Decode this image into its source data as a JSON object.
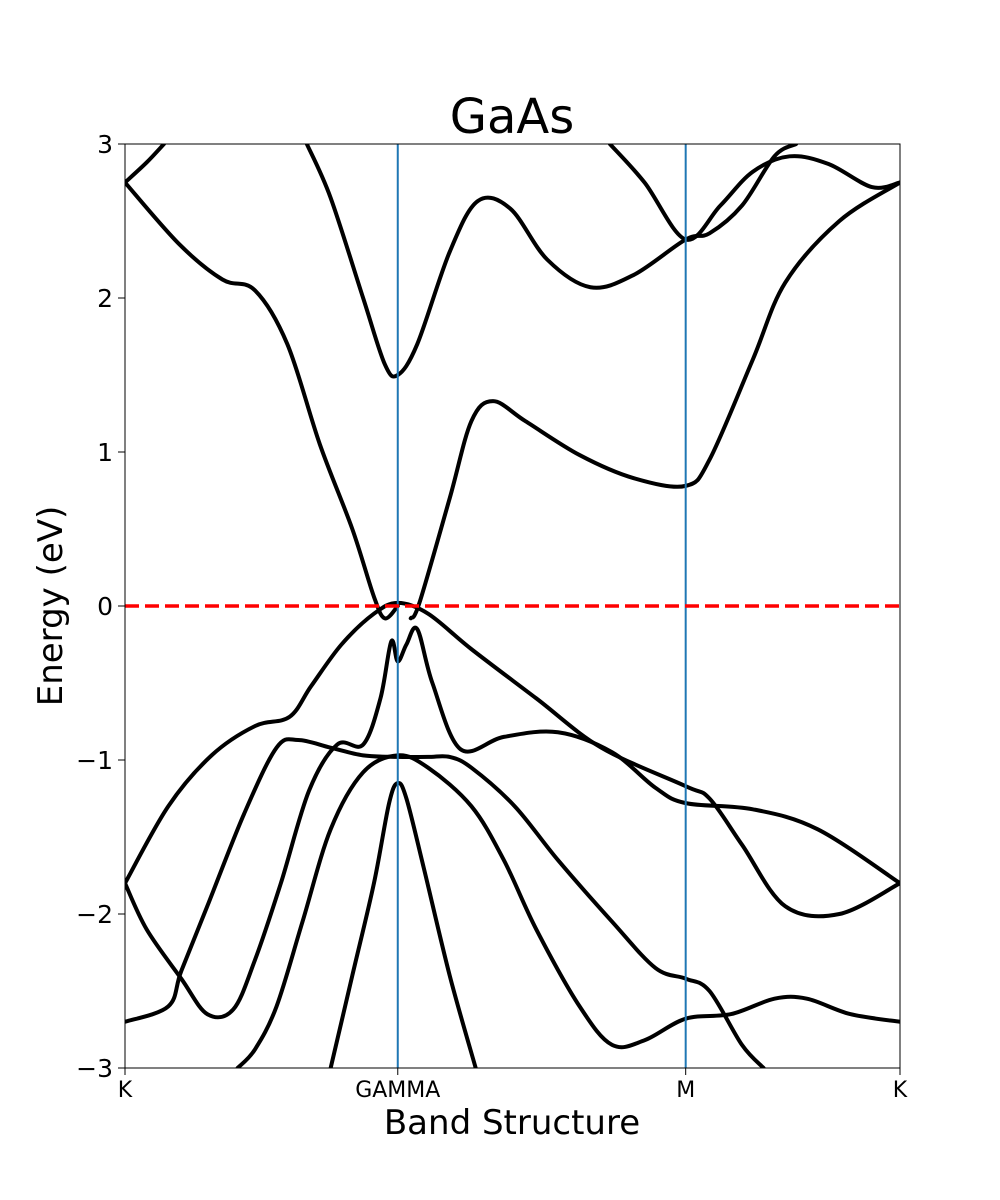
{
  "chart_data": {
    "type": "line",
    "title": "GaAs",
    "xlabel": "Band Structure",
    "ylabel": "Energy (eV)",
    "ylim": [
      -3,
      3
    ],
    "xlim": [
      0,
      3.58
    ],
    "yticks": [
      -3,
      -2,
      -1,
      0,
      1,
      2,
      3
    ],
    "ytick_labels": [
      "−3",
      "−2",
      "−1",
      "0",
      "1",
      "2",
      "3"
    ],
    "kpoints": [
      {
        "label": "K",
        "x": 0
      },
      {
        "label": "GAMMA",
        "x": 1.26
      },
      {
        "label": "M",
        "x": 2.59
      },
      {
        "label": "K",
        "x": 3.58
      }
    ],
    "fermi_level": 0,
    "colors": {
      "bands": "#000000",
      "fermi": "#ff0000",
      "kpoint_lines": "#1f77b4"
    },
    "series": [
      {
        "values": [
          [
            0,
            2.75
          ],
          [
            0.25,
            2.35
          ],
          [
            0.45,
            2.12
          ],
          [
            0.6,
            2.05
          ],
          [
            0.75,
            1.7
          ],
          [
            0.9,
            1.05
          ],
          [
            1.05,
            0.5
          ],
          [
            1.15,
            0.06
          ],
          [
            1.2,
            -0.08
          ],
          [
            1.26,
            0.0
          ]
        ]
      },
      {
        "values": [
          [
            1.32,
            -0.08
          ],
          [
            1.36,
            0.02
          ],
          [
            1.5,
            0.7
          ],
          [
            1.6,
            1.2
          ],
          [
            1.7,
            1.33
          ],
          [
            1.85,
            1.2
          ],
          [
            2.1,
            0.98
          ],
          [
            2.35,
            0.83
          ],
          [
            2.59,
            0.78
          ],
          [
            2.7,
            0.95
          ],
          [
            2.9,
            1.6
          ],
          [
            3.05,
            2.1
          ],
          [
            3.3,
            2.5
          ],
          [
            3.58,
            2.75
          ]
        ]
      },
      {
        "values": [
          [
            0.84,
            3.0
          ],
          [
            0.95,
            2.65
          ],
          [
            1.1,
            2.0
          ],
          [
            1.2,
            1.57
          ],
          [
            1.26,
            1.5
          ],
          [
            1.35,
            1.7
          ],
          [
            1.5,
            2.3
          ],
          [
            1.63,
            2.63
          ],
          [
            1.78,
            2.58
          ],
          [
            1.95,
            2.25
          ],
          [
            2.15,
            2.07
          ],
          [
            2.35,
            2.15
          ],
          [
            2.59,
            2.38
          ],
          [
            2.7,
            2.42
          ],
          [
            2.85,
            2.6
          ],
          [
            3.0,
            2.92
          ],
          [
            3.1,
            3.0
          ]
        ]
      },
      {
        "values": [
          [
            0,
            2.75
          ],
          [
            0.1,
            2.88
          ],
          [
            0.18,
            3.0
          ]
        ]
      },
      {
        "values": [
          [
            2.24,
            3.0
          ],
          [
            2.4,
            2.75
          ],
          [
            2.59,
            2.38
          ],
          [
            2.75,
            2.6
          ],
          [
            2.9,
            2.82
          ],
          [
            3.07,
            2.92
          ],
          [
            3.25,
            2.87
          ],
          [
            3.45,
            2.72
          ],
          [
            3.58,
            2.75
          ]
        ]
      },
      {
        "values": [
          [
            0,
            -1.8
          ],
          [
            0.2,
            -1.3
          ],
          [
            0.4,
            -0.97
          ],
          [
            0.6,
            -0.78
          ],
          [
            0.76,
            -0.72
          ],
          [
            0.86,
            -0.52
          ],
          [
            1.0,
            -0.25
          ],
          [
            1.15,
            -0.05
          ],
          [
            1.26,
            0.02
          ],
          [
            1.4,
            -0.05
          ],
          [
            1.6,
            -0.28
          ],
          [
            1.9,
            -0.6
          ],
          [
            2.2,
            -0.92
          ],
          [
            2.59,
            -1.17
          ],
          [
            2.7,
            -1.25
          ],
          [
            2.85,
            -1.55
          ],
          [
            3.05,
            -1.95
          ],
          [
            3.3,
            -2.0
          ],
          [
            3.58,
            -1.8
          ]
        ]
      },
      {
        "values": [
          [
            0,
            -1.8
          ],
          [
            0.1,
            -2.1
          ],
          [
            0.26,
            -2.42
          ],
          [
            0.38,
            -2.65
          ],
          [
            0.5,
            -2.62
          ],
          [
            0.6,
            -2.3
          ],
          [
            0.72,
            -1.8
          ],
          [
            0.85,
            -1.2
          ],
          [
            0.98,
            -0.9
          ],
          [
            1.1,
            -0.9
          ],
          [
            1.18,
            -0.6
          ],
          [
            1.23,
            -0.23
          ],
          [
            1.26,
            -0.36
          ],
          [
            1.3,
            -0.25
          ],
          [
            1.35,
            -0.15
          ],
          [
            1.42,
            -0.5
          ],
          [
            1.55,
            -0.93
          ],
          [
            1.75,
            -0.85
          ],
          [
            2.0,
            -0.82
          ],
          [
            2.25,
            -0.95
          ],
          [
            2.45,
            -1.18
          ],
          [
            2.59,
            -1.28
          ],
          [
            2.9,
            -1.32
          ],
          [
            3.2,
            -1.45
          ],
          [
            3.58,
            -1.8
          ]
        ]
      },
      {
        "values": [
          [
            0,
            -2.7
          ],
          [
            0.2,
            -2.6
          ],
          [
            0.26,
            -2.37
          ],
          [
            0.38,
            -1.95
          ],
          [
            0.55,
            -1.35
          ],
          [
            0.7,
            -0.92
          ],
          [
            0.8,
            -0.87
          ],
          [
            0.95,
            -0.92
          ],
          [
            1.1,
            -0.97
          ],
          [
            1.26,
            -0.98
          ],
          [
            1.4,
            -0.98
          ],
          [
            1.5,
            -0.98
          ],
          [
            1.6,
            -1.05
          ],
          [
            1.8,
            -1.3
          ],
          [
            2.0,
            -1.65
          ],
          [
            2.25,
            -2.05
          ],
          [
            2.45,
            -2.35
          ],
          [
            2.59,
            -2.42
          ],
          [
            2.7,
            -2.5
          ],
          [
            2.85,
            -2.85
          ],
          [
            2.95,
            -3.0
          ]
        ]
      },
      {
        "values": [
          [
            0.52,
            -3.0
          ],
          [
            0.6,
            -2.88
          ],
          [
            0.7,
            -2.6
          ],
          [
            0.82,
            -2.05
          ],
          [
            0.95,
            -1.45
          ],
          [
            1.1,
            -1.08
          ],
          [
            1.26,
            -0.97
          ],
          [
            1.4,
            -1.05
          ],
          [
            1.6,
            -1.3
          ],
          [
            1.75,
            -1.65
          ],
          [
            1.9,
            -2.1
          ],
          [
            2.1,
            -2.6
          ],
          [
            2.25,
            -2.85
          ],
          [
            2.4,
            -2.82
          ],
          [
            2.59,
            -2.68
          ],
          [
            2.8,
            -2.65
          ],
          [
            3.0,
            -2.55
          ],
          [
            3.15,
            -2.55
          ],
          [
            3.35,
            -2.65
          ],
          [
            3.58,
            -2.7
          ]
        ]
      },
      {
        "values": [
          [
            0.95,
            -3.0
          ],
          [
            1.05,
            -2.4
          ],
          [
            1.15,
            -1.8
          ],
          [
            1.22,
            -1.28
          ],
          [
            1.26,
            -1.15
          ],
          [
            1.3,
            -1.25
          ],
          [
            1.38,
            -1.7
          ],
          [
            1.5,
            -2.4
          ],
          [
            1.62,
            -3.0
          ]
        ]
      }
    ]
  }
}
